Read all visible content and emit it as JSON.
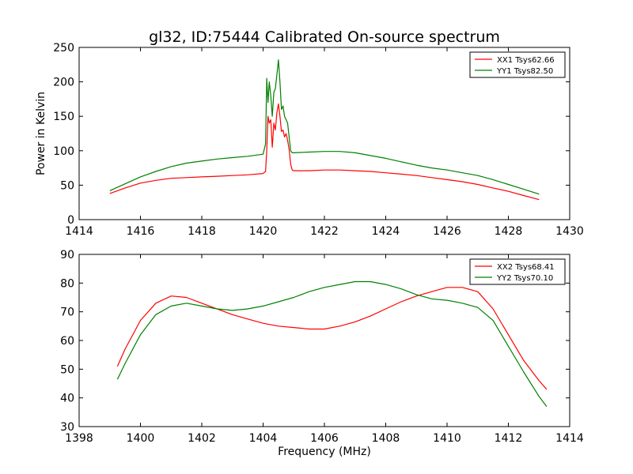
{
  "figure": {
    "title": "gl32, ID:75444 Calibrated On-source spectrum",
    "colors": {
      "red": "#ff0000",
      "green": "#008000"
    }
  },
  "chart_data": [
    {
      "type": "line",
      "title": "gl32, ID:75444 Calibrated On-source spectrum",
      "xlabel": "",
      "ylabel": "Power in Kelvin",
      "xlim": [
        1414,
        1430
      ],
      "ylim": [
        0,
        250
      ],
      "xticks": [
        1414,
        1416,
        1418,
        1420,
        1422,
        1424,
        1426,
        1428,
        1430
      ],
      "yticks": [
        0,
        50,
        100,
        150,
        200,
        250
      ],
      "legend_position": "top-right",
      "grid": false,
      "series": [
        {
          "name": "XX1 Tsys62.66",
          "color": "#ff0000",
          "x": [
            1415.0,
            1415.5,
            1416.0,
            1416.5,
            1417.0,
            1417.5,
            1418.0,
            1418.5,
            1419.0,
            1419.5,
            1420.0,
            1420.08,
            1420.12,
            1420.16,
            1420.2,
            1420.25,
            1420.3,
            1420.35,
            1420.4,
            1420.45,
            1420.5,
            1420.55,
            1420.6,
            1420.65,
            1420.7,
            1420.75,
            1420.8,
            1420.85,
            1420.9,
            1420.95,
            1421.0,
            1421.5,
            1422.0,
            1422.5,
            1423.0,
            1423.5,
            1424.0,
            1424.5,
            1425.0,
            1425.5,
            1426.0,
            1426.5,
            1427.0,
            1427.5,
            1428.0,
            1428.5,
            1429.0
          ],
          "values": [
            38,
            46,
            53,
            57,
            60,
            61,
            62,
            63,
            64,
            65,
            67,
            70,
            100,
            150,
            140,
            145,
            105,
            140,
            130,
            155,
            168,
            150,
            128,
            130,
            120,
            125,
            115,
            102,
            80,
            72,
            71,
            71,
            72,
            72,
            71,
            70,
            68,
            66,
            64,
            61,
            58,
            55,
            51,
            46,
            41,
            35,
            29
          ]
        },
        {
          "name": "YY1 Tsys82.50",
          "color": "#008000",
          "x": [
            1415.0,
            1415.5,
            1416.0,
            1416.5,
            1417.0,
            1417.5,
            1418.0,
            1418.5,
            1419.0,
            1419.5,
            1420.0,
            1420.08,
            1420.12,
            1420.16,
            1420.2,
            1420.25,
            1420.3,
            1420.35,
            1420.4,
            1420.45,
            1420.5,
            1420.55,
            1420.6,
            1420.65,
            1420.7,
            1420.75,
            1420.8,
            1420.85,
            1420.9,
            1420.95,
            1421.0,
            1421.5,
            1422.0,
            1422.5,
            1423.0,
            1423.5,
            1424.0,
            1424.5,
            1425.0,
            1425.5,
            1426.0,
            1426.5,
            1427.0,
            1427.5,
            1428.0,
            1428.5,
            1429.0
          ],
          "values": [
            42,
            52,
            62,
            70,
            77,
            82,
            85,
            88,
            90,
            92,
            95,
            110,
            205,
            170,
            200,
            180,
            150,
            185,
            190,
            210,
            232,
            200,
            160,
            165,
            150,
            145,
            140,
            120,
            100,
            97,
            97,
            98,
            99,
            99,
            97,
            93,
            89,
            84,
            79,
            75,
            72,
            68,
            64,
            58,
            51,
            44,
            37
          ]
        }
      ]
    },
    {
      "type": "line",
      "title": "",
      "xlabel": "Frequency (MHz)",
      "ylabel": "",
      "xlim": [
        1398,
        1414
      ],
      "ylim": [
        30,
        90
      ],
      "xticks": [
        1398,
        1400,
        1402,
        1404,
        1406,
        1408,
        1410,
        1412,
        1414
      ],
      "yticks": [
        30,
        40,
        50,
        60,
        70,
        80,
        90
      ],
      "legend_position": "top-right",
      "grid": false,
      "series": [
        {
          "name": "XX2 Tsys68.41",
          "color": "#ff0000",
          "x": [
            1399.25,
            1399.5,
            1400.0,
            1400.5,
            1401.0,
            1401.5,
            1402.0,
            1402.5,
            1403.0,
            1403.5,
            1404.0,
            1404.5,
            1405.0,
            1405.5,
            1406.0,
            1406.5,
            1407.0,
            1407.5,
            1408.0,
            1408.5,
            1409.0,
            1409.5,
            1410.0,
            1410.5,
            1411.0,
            1411.5,
            1412.0,
            1412.5,
            1413.0,
            1413.25
          ],
          "values": [
            51,
            57,
            67,
            73,
            75.5,
            75,
            73,
            71,
            69,
            67.5,
            66,
            65,
            64.5,
            64,
            64,
            65,
            66.5,
            68.5,
            71,
            73.5,
            75.5,
            77,
            78.5,
            78.5,
            77,
            71,
            62,
            53,
            46,
            43
          ]
        },
        {
          "name": "YY2 Tsys70.10",
          "color": "#008000",
          "x": [
            1399.25,
            1399.5,
            1400.0,
            1400.5,
            1401.0,
            1401.5,
            1402.0,
            1402.5,
            1403.0,
            1403.5,
            1404.0,
            1404.5,
            1405.0,
            1405.5,
            1406.0,
            1406.5,
            1407.0,
            1407.5,
            1408.0,
            1408.5,
            1409.0,
            1409.5,
            1410.0,
            1410.5,
            1411.0,
            1411.5,
            1412.0,
            1412.5,
            1413.0,
            1413.25
          ],
          "values": [
            46.5,
            52,
            62,
            69,
            72,
            73,
            72,
            71,
            70.5,
            71,
            72,
            73.5,
            75,
            77,
            78.5,
            79.5,
            80.5,
            80.5,
            79.5,
            78,
            76,
            74.5,
            74,
            73,
            71.5,
            67,
            58,
            49,
            40.5,
            37
          ]
        }
      ]
    }
  ]
}
